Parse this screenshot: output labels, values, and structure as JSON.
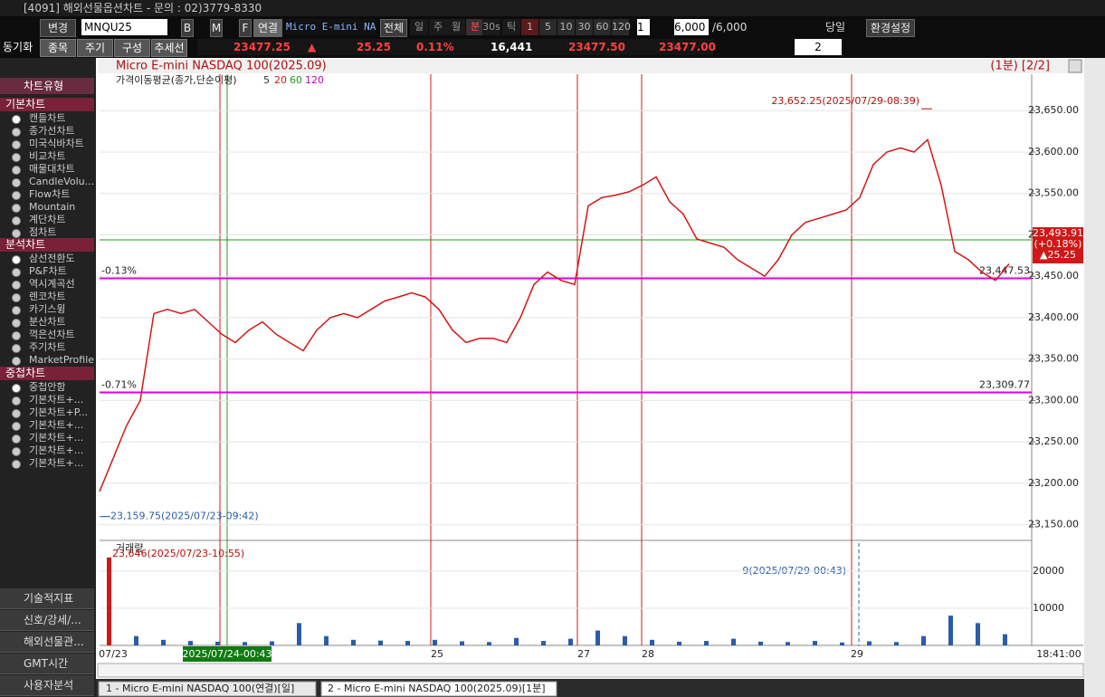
{
  "window": {
    "title": "[4091] 해외선물옵션차트 - 문의 : 02)3779-8330"
  },
  "toolbar": {
    "change": "변경",
    "symbol": "MNQU25",
    "b": "B",
    "m": "M",
    "f": "F",
    "link": "연결",
    "name": "Micro E-mini NAS",
    "all": "전체",
    "periods": [
      "일",
      "주",
      "월",
      "분",
      "30s",
      "틱"
    ],
    "intervals": [
      "1",
      "5",
      "10",
      "30",
      "60",
      "120"
    ],
    "unit": "1",
    "count": "6,000",
    "max": "/6,000",
    "today": "당일",
    "settings": "환경설정"
  },
  "toolbar2": {
    "sync": "동기화",
    "buttons": [
      "종목",
      "주기",
      "구성",
      "추세선"
    ],
    "price": "23477.25",
    "arrow": "▲",
    "change": "25.25",
    "rate": "0.11%",
    "volume": "16,441",
    "ask": "23477.50",
    "bid": "23477.00",
    "layout": "2"
  },
  "sidebar": {
    "header": "차트유형",
    "groups": [
      {
        "title": "기본차트",
        "items": [
          "캔들차트",
          "종가선차트",
          "미국식바차트",
          "비교차트",
          "매물대차트",
          "CandleVolu...",
          "Flow차트",
          "Mountain",
          "계단차트",
          "점차트"
        ]
      },
      {
        "title": "분석차트",
        "items": [
          "삼선전환도",
          "P&F차트",
          "역시계곡선",
          "렌코차트",
          "카기스윙",
          "분산차트",
          "꺽은선차트",
          "주기차트",
          "MarketProfile"
        ]
      },
      {
        "title": "중첩차트",
        "items": [
          "중첩안함",
          "기본차트+...",
          "기본차트+P...",
          "기본차트+...",
          "기본차트+...",
          "기본차트+...",
          "기본차트+..."
        ]
      }
    ],
    "bottom": [
      "기술적지표",
      "신호/강세/...",
      "해외선물관...",
      "GMT시간",
      "사용자분석"
    ]
  },
  "chart": {
    "title": "Micro E-mini NASDAQ 100(2025.09)",
    "period": "(1분) [2/2]",
    "legend": {
      "label": "가격이동평균(종가,단순이평)",
      "periods": [
        5,
        20,
        60,
        120
      ],
      "colors": [
        "#333333",
        "#d01818",
        "#18a018",
        "#c000c0"
      ]
    },
    "ylim": [
      23131,
      23694
    ],
    "yticks": [
      {
        "value": 23150,
        "label": "23,150.00"
      },
      {
        "value": 23200,
        "label": "23,200.00"
      },
      {
        "value": 23250,
        "label": "23,250.00"
      },
      {
        "value": 23300,
        "label": "23,300.00"
      },
      {
        "value": 23350,
        "label": "23,350.00"
      },
      {
        "value": 23400,
        "label": "23,400.00"
      },
      {
        "value": 23450,
        "label": "23,450.00"
      },
      {
        "value": 23500,
        "label": "23,500.00"
      },
      {
        "value": 23550,
        "label": "23,550.00"
      },
      {
        "value": 23600,
        "label": "23,600.00"
      },
      {
        "value": 23650,
        "label": "23,650.00"
      }
    ],
    "price": {
      "color": "#d01818",
      "values": [
        23190,
        23230,
        23270,
        23300,
        23405,
        23410,
        23405,
        23410,
        23395,
        23380,
        23370,
        23385,
        23395,
        23380,
        23370,
        23360,
        23385,
        23400,
        23405,
        23400,
        23410,
        23420,
        23425,
        23430,
        23425,
        23410,
        23385,
        23370,
        23375,
        23375,
        23370,
        23400,
        23440,
        23455,
        23445,
        23440,
        23535,
        23545,
        23548,
        23552,
        23560,
        23570,
        23540,
        23525,
        23495,
        23490,
        23485,
        23470,
        23460,
        23450,
        23470,
        23500,
        23515,
        23520,
        23525,
        23530,
        23545,
        23585,
        23600,
        23605,
        23600,
        23615,
        23560,
        23480,
        23470,
        23455,
        23445,
        23465
      ]
    },
    "levels": {
      "color": "#e000e0",
      "items": [
        {
          "value": 23447.53,
          "label": "23,447.53",
          "pct": "-0.13%"
        },
        {
          "value": 23309.77,
          "label": "23,309.77",
          "pct": "-0.71%"
        }
      ]
    },
    "current": {
      "value": 23493.91,
      "label": "23,493.91",
      "rate": "(+0.18%)",
      "change": "▲25.25"
    },
    "high": {
      "value": 23652.25,
      "label": "23,652.25(2025/07/29-08:39)"
    },
    "low": {
      "value": 23159.75,
      "label": "—23,159.75(2025/07/23-09:42)"
    },
    "volume": {
      "title": "거래량",
      "color": "#2a5caa",
      "ylim": [
        0,
        27500
      ],
      "yticks": [
        10000,
        20000
      ],
      "values": [
        23646,
        2500,
        1500,
        1200,
        1000,
        900,
        1100,
        6000,
        2500,
        1500,
        1300,
        1200,
        1500,
        1100,
        900,
        2000,
        1200,
        1800,
        4000,
        2500,
        1500,
        1000,
        1200,
        1800,
        1000,
        900,
        1200,
        800,
        1100,
        900,
        2500,
        8000,
        6000,
        3000
      ],
      "max_label": "23,646(2025/07/23-10:55)",
      "min_label": "9(2025/07/29-00:43)"
    },
    "xlabels": [
      "07/23",
      "2025/07/24-00:43",
      "25",
      "27",
      "28",
      "29",
      "18:41:00"
    ]
  },
  "tabs": [
    "1 - Micro E-mini NASDAQ 100(연결)[일]",
    "2 - Micro E-mini NASDAQ 100(2025.09)[1분]"
  ]
}
